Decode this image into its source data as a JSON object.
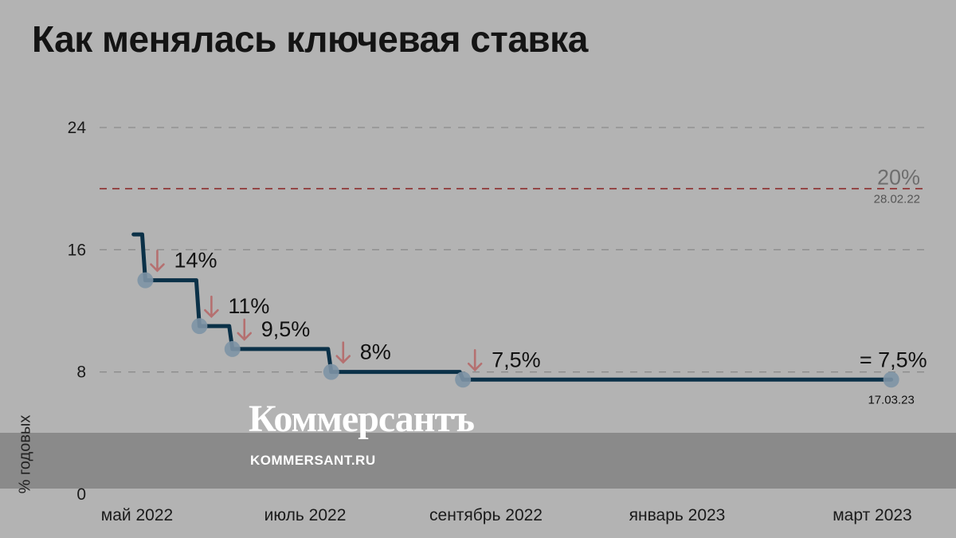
{
  "title": "Как менялась ключевая ставка",
  "brand": {
    "name": "Коммерсантъ",
    "url": "KOMMERSANT.RU"
  },
  "colors": {
    "background": "#b3b3b3",
    "series_line": "#0b3148",
    "marker": "#7d93a5",
    "arrow": "#b57070",
    "reference_line": "#8b2a2a",
    "grid": "#8c8c8c",
    "band": "#8a8a8a"
  },
  "chart_data": {
    "type": "line",
    "step": true,
    "title": "Как менялась ключевая ставка",
    "xlabel": "",
    "ylabel": "% годовых",
    "ylim": [
      0,
      24
    ],
    "grid": true,
    "yticks": [
      0,
      8,
      16,
      24
    ],
    "xticks": [
      "май 2022",
      "июль 2022",
      "сентябрь 2022",
      "январь 2023",
      "март 2023"
    ],
    "series": [
      {
        "points": [
          {
            "x": "2022-04-29",
            "y": 17,
            "marker": false,
            "label": ""
          },
          {
            "x": "2022-05-04",
            "y": 14,
            "marker": true,
            "label": "14%",
            "change": "down"
          },
          {
            "x": "2022-05-27",
            "y": 11,
            "marker": true,
            "label": "11%",
            "change": "down"
          },
          {
            "x": "2022-06-10",
            "y": 9.5,
            "marker": true,
            "label": "9,5%",
            "change": "down"
          },
          {
            "x": "2022-07-22",
            "y": 8,
            "marker": true,
            "label": "8%",
            "change": "down"
          },
          {
            "x": "2022-09-16",
            "y": 7.5,
            "marker": true,
            "label": "7,5%",
            "change": "down"
          },
          {
            "x": "2023-03-17",
            "y": 7.5,
            "marker": true,
            "label": "= 7,5%",
            "change": "same",
            "date_label": "17.03.23"
          }
        ]
      }
    ],
    "reference": {
      "y": 20,
      "label": "20%",
      "date_label": "28.02.22"
    }
  }
}
